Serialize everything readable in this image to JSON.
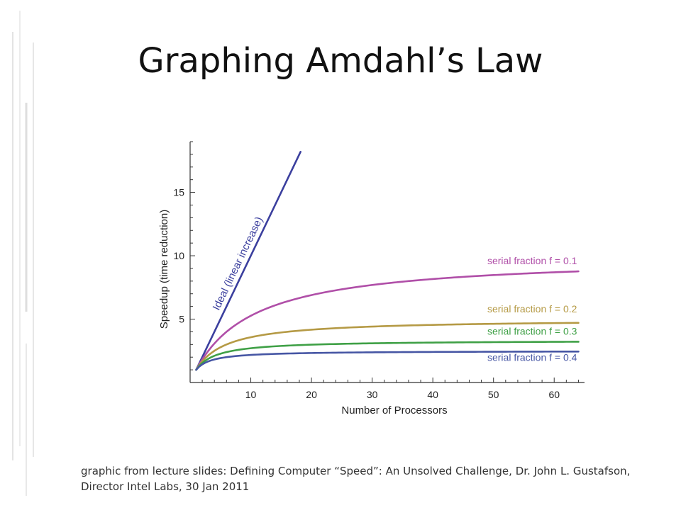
{
  "slide": {
    "title": "Graphing Amdahl’s Law",
    "caption_line1": "graphic from lecture slides: Defining Computer “Speed”: An Unsolved Challenge, Dr. John L. Gustafson,",
    "caption_line2": "Director Intel Labs, 30 Jan 2011"
  },
  "chart_data": {
    "type": "line",
    "title": "",
    "xlabel": "Number of Processors",
    "ylabel": "Speedup (time reduction)",
    "xlim": [
      0,
      65
    ],
    "ylim": [
      0,
      19
    ],
    "xticks": [
      10,
      20,
      30,
      40,
      50,
      60
    ],
    "yticks": [
      5,
      10,
      15
    ],
    "grid": false,
    "ideal": {
      "label": "Ideal (linear increase)",
      "color": "#3b3f9e",
      "x": [
        1,
        18.2
      ],
      "y": [
        1,
        18.2
      ]
    },
    "series": [
      {
        "name": "serial fraction f = 0.1",
        "f": 0.1,
        "color": "#b04fa8"
      },
      {
        "name": "serial fraction f = 0.2",
        "f": 0.2,
        "color": "#b59a45"
      },
      {
        "name": "serial fraction f = 0.3",
        "f": 0.3,
        "color": "#3fa046"
      },
      {
        "name": "serial fraction f = 0.4",
        "f": 0.4,
        "color": "#4656a4"
      }
    ],
    "x_range": [
      1,
      64
    ]
  }
}
